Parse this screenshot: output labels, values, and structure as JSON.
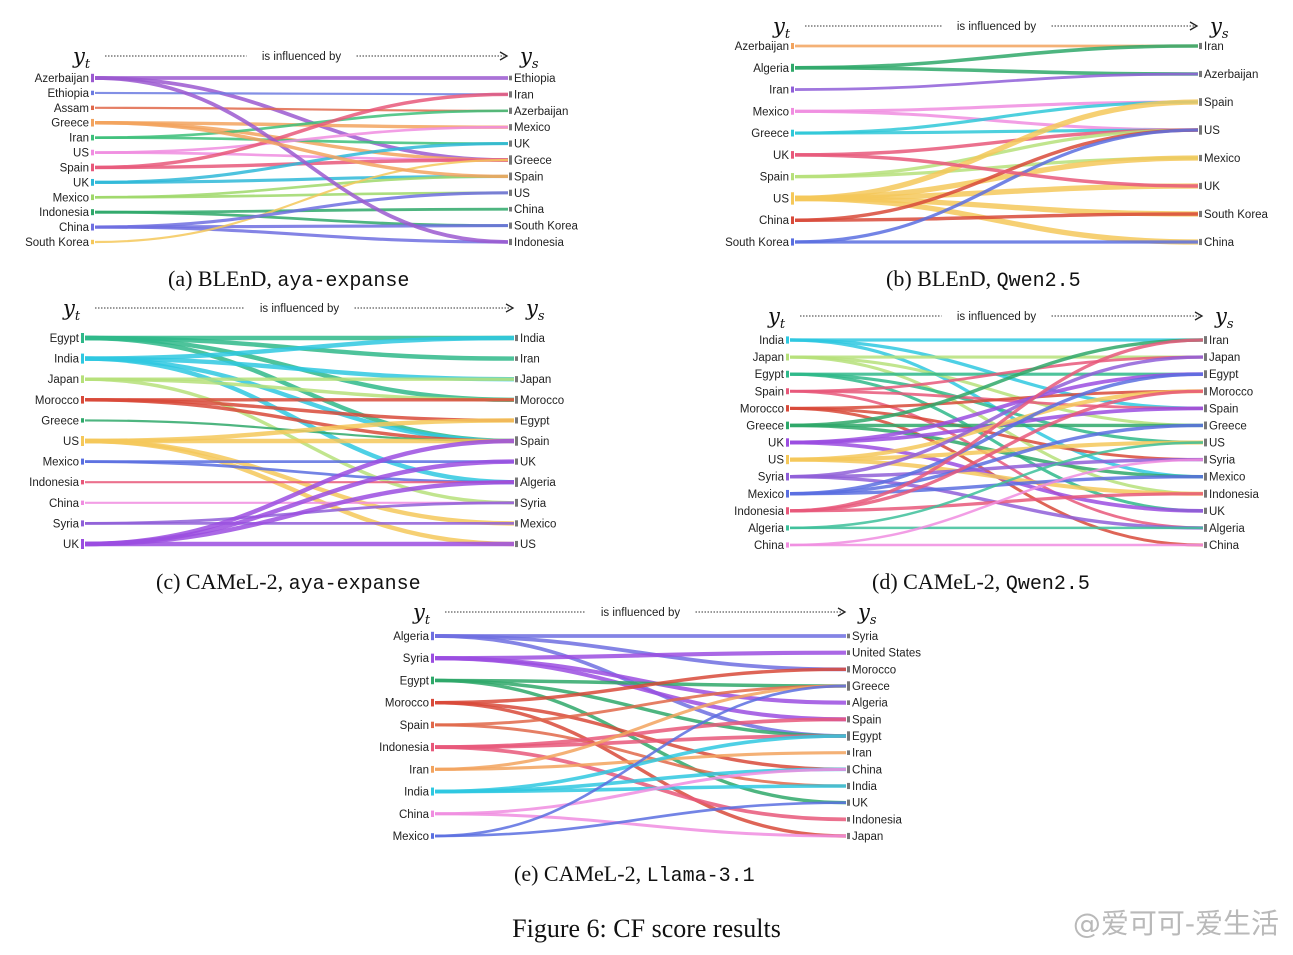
{
  "figure_caption": "Figure 6: CF score results",
  "watermark": "@爱可可-爱生活",
  "legend_arrow_text": "is influenced by",
  "target_symbol": "y",
  "target_subscript": "t",
  "source_symbol": "y",
  "source_subscript": "s",
  "panels": [
    {
      "id": "a",
      "caption_prefix": "(a) BLEnD, ",
      "caption_model": "aya-expanse",
      "left_nodes": [
        {
          "label": "Azerbaijan",
          "color": "#9b59d0",
          "weight": 1.6
        },
        {
          "label": "Ethiopia",
          "color": "#6c7be0",
          "weight": 0.6
        },
        {
          "label": "Assam",
          "color": "#e0684a",
          "weight": 0.6
        },
        {
          "label": "Greece",
          "color": "#f2a35e",
          "weight": 1.4
        },
        {
          "label": "Iran",
          "color": "#3dbf7a",
          "weight": 0.9
        },
        {
          "label": "US",
          "color": "#f08de0",
          "weight": 0.9
        },
        {
          "label": "Spain",
          "color": "#e8587a",
          "weight": 1.4
        },
        {
          "label": "UK",
          "color": "#2fb8d8",
          "weight": 1.2
        },
        {
          "label": "Mexico",
          "color": "#9fd86a",
          "weight": 0.9
        },
        {
          "label": "Indonesia",
          "color": "#2fa86a",
          "weight": 1.0
        },
        {
          "label": "China",
          "color": "#6f6fe0",
          "weight": 1.2
        },
        {
          "label": "South Korea",
          "color": "#f5c85a",
          "weight": 0.6
        }
      ],
      "right_nodes": [
        "Ethiopia",
        "Iran",
        "Azerbaijan",
        "Mexico",
        "UK",
        "Greece",
        "Spain",
        "US",
        "China",
        "South Korea",
        "Indonesia"
      ],
      "links": [
        [
          0,
          0
        ],
        [
          0,
          5
        ],
        [
          1,
          1
        ],
        [
          2,
          2
        ],
        [
          3,
          3
        ],
        [
          3,
          5
        ],
        [
          4,
          4
        ],
        [
          4,
          2
        ],
        [
          5,
          5
        ],
        [
          5,
          3
        ],
        [
          6,
          5
        ],
        [
          6,
          1
        ],
        [
          7,
          6
        ],
        [
          7,
          4
        ],
        [
          8,
          6
        ],
        [
          8,
          7
        ],
        [
          9,
          8
        ],
        [
          9,
          9
        ],
        [
          10,
          9
        ],
        [
          10,
          10
        ],
        [
          11,
          5
        ],
        [
          10,
          7
        ],
        [
          0,
          10
        ],
        [
          3,
          6
        ]
      ]
    },
    {
      "id": "b",
      "caption_prefix": "(b) BLEnD, ",
      "caption_model": "Qwen2.5",
      "left_nodes": [
        {
          "label": "Azerbaijan",
          "color": "#f2a35e",
          "weight": 1.0
        },
        {
          "label": "Algeria",
          "color": "#2fa86a",
          "weight": 1.5
        },
        {
          "label": "Iran",
          "color": "#8f5fd8",
          "weight": 1.0
        },
        {
          "label": "Mexico",
          "color": "#f08de0",
          "weight": 1.2
        },
        {
          "label": "Greece",
          "color": "#2fc8d8",
          "weight": 1.2
        },
        {
          "label": "UK",
          "color": "#e8587a",
          "weight": 1.4
        },
        {
          "label": "Spain",
          "color": "#b6e07a",
          "weight": 1.3
        },
        {
          "label": "US",
          "color": "#f5c85a",
          "weight": 2.6
        },
        {
          "label": "China",
          "color": "#d84a3a",
          "weight": 1.4
        },
        {
          "label": "South Korea",
          "color": "#5a6fe0",
          "weight": 1.3
        }
      ],
      "right_nodes": [
        "Iran",
        "Azerbaijan",
        "Spain",
        "US",
        "Mexico",
        "UK",
        "South Korea",
        "China"
      ],
      "links": [
        [
          0,
          0
        ],
        [
          1,
          0
        ],
        [
          1,
          1
        ],
        [
          2,
          1
        ],
        [
          3,
          2
        ],
        [
          3,
          3
        ],
        [
          4,
          3
        ],
        [
          4,
          2
        ],
        [
          5,
          3
        ],
        [
          6,
          3
        ],
        [
          6,
          4
        ],
        [
          7,
          2
        ],
        [
          7,
          4
        ],
        [
          7,
          5
        ],
        [
          7,
          7
        ],
        [
          7,
          6
        ],
        [
          8,
          3
        ],
        [
          8,
          6
        ],
        [
          9,
          3
        ],
        [
          9,
          7
        ],
        [
          5,
          5
        ]
      ]
    },
    {
      "id": "c",
      "caption_prefix": "(c) CAMeL-2, ",
      "caption_model": "aya-expanse",
      "left_nodes": [
        {
          "label": "Egypt",
          "color": "#2fb88a",
          "weight": 2.0
        },
        {
          "label": "India",
          "color": "#2fc8e0",
          "weight": 2.0
        },
        {
          "label": "Japan",
          "color": "#b6e07a",
          "weight": 1.4
        },
        {
          "label": "Morocco",
          "color": "#d84a3a",
          "weight": 1.4
        },
        {
          "label": "Greece",
          "color": "#2fa86a",
          "weight": 0.6
        },
        {
          "label": "US",
          "color": "#f5c85a",
          "weight": 2.0
        },
        {
          "label": "Mexico",
          "color": "#5a6fe0",
          "weight": 1.0
        },
        {
          "label": "Indonesia",
          "color": "#e8587a",
          "weight": 0.6
        },
        {
          "label": "China",
          "color": "#f08de0",
          "weight": 0.6
        },
        {
          "label": "Syria",
          "color": "#8f5fd8",
          "weight": 1.0
        },
        {
          "label": "UK",
          "color": "#9b4ee0",
          "weight": 2.0
        }
      ],
      "right_nodes": [
        "India",
        "Iran",
        "Japan",
        "Morocco",
        "Egypt",
        "Spain",
        "UK",
        "Algeria",
        "Syria",
        "Mexico",
        "US"
      ],
      "links": [
        [
          0,
          0
        ],
        [
          0,
          1
        ],
        [
          0,
          3
        ],
        [
          0,
          5
        ],
        [
          1,
          0
        ],
        [
          1,
          2
        ],
        [
          1,
          5
        ],
        [
          1,
          7
        ],
        [
          2,
          2
        ],
        [
          2,
          3
        ],
        [
          2,
          8
        ],
        [
          3,
          3
        ],
        [
          3,
          4
        ],
        [
          3,
          5
        ],
        [
          4,
          5
        ],
        [
          5,
          4
        ],
        [
          5,
          5
        ],
        [
          5,
          9
        ],
        [
          5,
          10
        ],
        [
          6,
          6
        ],
        [
          6,
          7
        ],
        [
          7,
          7
        ],
        [
          8,
          8
        ],
        [
          9,
          8
        ],
        [
          9,
          9
        ],
        [
          10,
          5
        ],
        [
          10,
          6
        ],
        [
          10,
          7
        ],
        [
          10,
          10
        ]
      ]
    },
    {
      "id": "d",
      "caption_prefix": "(d) CAMeL-2, ",
      "caption_model": "Qwen2.5",
      "left_nodes": [
        {
          "label": "India",
          "color": "#2fc8e0",
          "weight": 1.3
        },
        {
          "label": "Japan",
          "color": "#b6e07a",
          "weight": 1.2
        },
        {
          "label": "Egypt",
          "color": "#2fb88a",
          "weight": 1.2
        },
        {
          "label": "Spain",
          "color": "#e8587a",
          "weight": 1.0
        },
        {
          "label": "Morocco",
          "color": "#d84a3a",
          "weight": 1.1
        },
        {
          "label": "Greece",
          "color": "#2fa86a",
          "weight": 1.4
        },
        {
          "label": "UK",
          "color": "#9b4ee0",
          "weight": 1.6
        },
        {
          "label": "US",
          "color": "#f5c85a",
          "weight": 1.8
        },
        {
          "label": "Syria",
          "color": "#8f5fd8",
          "weight": 1.4
        },
        {
          "label": "Mexico",
          "color": "#5a6fe0",
          "weight": 1.4
        },
        {
          "label": "Indonesia",
          "color": "#e8587a",
          "weight": 1.3
        },
        {
          "label": "Algeria",
          "color": "#3dbf9a",
          "weight": 0.8
        },
        {
          "label": "China",
          "color": "#f08de0",
          "weight": 0.8
        }
      ],
      "right_nodes": [
        "Iran",
        "Japan",
        "Egypt",
        "Morocco",
        "Spain",
        "Greece",
        "US",
        "Syria",
        "Mexico",
        "Indonesia",
        "UK",
        "Algeria",
        "China"
      ],
      "links": [
        [
          0,
          0
        ],
        [
          0,
          4
        ],
        [
          0,
          8
        ],
        [
          1,
          1
        ],
        [
          1,
          5
        ],
        [
          1,
          9
        ],
        [
          2,
          2
        ],
        [
          2,
          6
        ],
        [
          2,
          10
        ],
        [
          3,
          4
        ],
        [
          3,
          1
        ],
        [
          3,
          11
        ],
        [
          4,
          3
        ],
        [
          4,
          7
        ],
        [
          4,
          12
        ],
        [
          5,
          5
        ],
        [
          5,
          0
        ],
        [
          5,
          8
        ],
        [
          6,
          10
        ],
        [
          6,
          2
        ],
        [
          6,
          4
        ],
        [
          7,
          6
        ],
        [
          7,
          3
        ],
        [
          7,
          9
        ],
        [
          8,
          7
        ],
        [
          8,
          1
        ],
        [
          8,
          11
        ],
        [
          9,
          8
        ],
        [
          9,
          5
        ],
        [
          9,
          2
        ],
        [
          10,
          9
        ],
        [
          10,
          3
        ],
        [
          10,
          0
        ],
        [
          11,
          11
        ],
        [
          11,
          6
        ],
        [
          12,
          12
        ],
        [
          12,
          7
        ]
      ]
    },
    {
      "id": "e",
      "caption_prefix": "(e) CAMeL-2, ",
      "caption_model": "Llama-3.1",
      "left_nodes": [
        {
          "label": "Algeria",
          "color": "#6f6fe0",
          "weight": 1.6
        },
        {
          "label": "Syria",
          "color": "#9b4ee0",
          "weight": 1.8
        },
        {
          "label": "Egypt",
          "color": "#2fa86a",
          "weight": 1.4
        },
        {
          "label": "Morocco",
          "color": "#d84a3a",
          "weight": 1.4
        },
        {
          "label": "Spain",
          "color": "#e0684a",
          "weight": 1.1
        },
        {
          "label": "Indonesia",
          "color": "#e8587a",
          "weight": 1.6
        },
        {
          "label": "Iran",
          "color": "#f2a35e",
          "weight": 1.2
        },
        {
          "label": "India",
          "color": "#2fc8e0",
          "weight": 1.5
        },
        {
          "label": "China",
          "color": "#f08de0",
          "weight": 1.1
        },
        {
          "label": "Mexico",
          "color": "#5a6fe0",
          "weight": 0.9
        }
      ],
      "right_nodes": [
        "Syria",
        "United States",
        "Morocco",
        "Greece",
        "Algeria",
        "Spain",
        "Egypt",
        "Iran",
        "China",
        "India",
        "UK",
        "Indonesia",
        "Japan"
      ],
      "links": [
        [
          0,
          0
        ],
        [
          0,
          2
        ],
        [
          0,
          6
        ],
        [
          1,
          1
        ],
        [
          1,
          4
        ],
        [
          1,
          5
        ],
        [
          2,
          3
        ],
        [
          2,
          6
        ],
        [
          2,
          10
        ],
        [
          3,
          2
        ],
        [
          3,
          8
        ],
        [
          3,
          12
        ],
        [
          4,
          3
        ],
        [
          4,
          9
        ],
        [
          5,
          5
        ],
        [
          5,
          11
        ],
        [
          5,
          6
        ],
        [
          6,
          7
        ],
        [
          6,
          3
        ],
        [
          7,
          9
        ],
        [
          7,
          6
        ],
        [
          7,
          8
        ],
        [
          8,
          8
        ],
        [
          8,
          12
        ],
        [
          9,
          10
        ],
        [
          9,
          3
        ]
      ]
    }
  ]
}
